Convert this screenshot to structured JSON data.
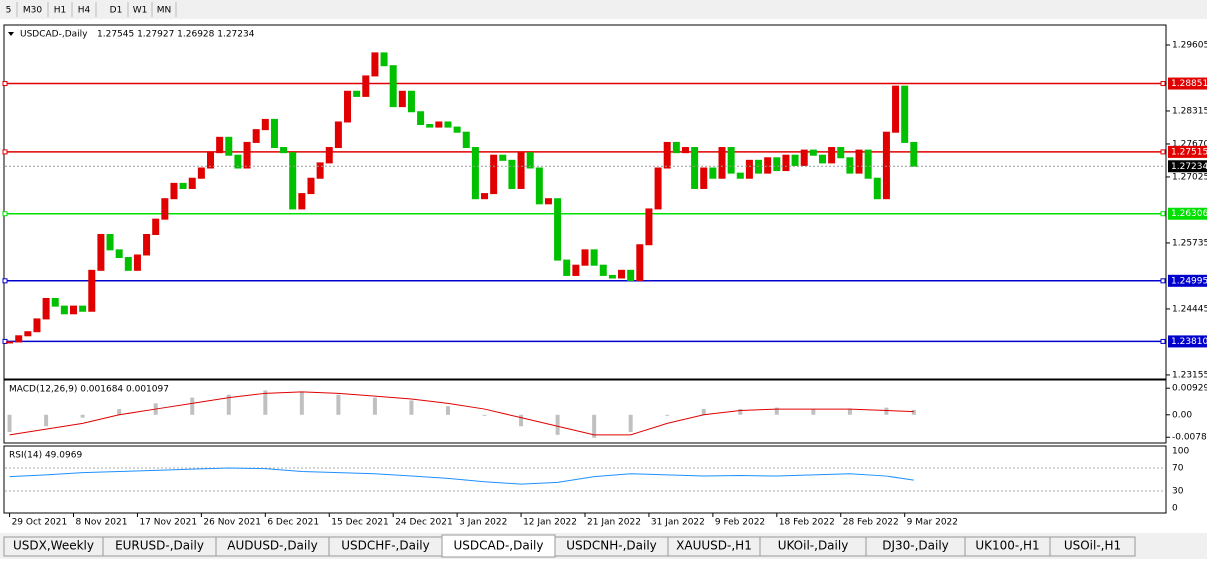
{
  "toolbar": {
    "timeframes": [
      "5",
      "M30",
      "H1",
      "H4",
      "D1",
      "W1",
      "MN"
    ]
  },
  "chart_data": {
    "type": "candlestick",
    "header": "USDCAD-,Daily",
    "quote": "1.27545 1.27927 1.26928 1.27234",
    "closes": [
      1.238,
      1.2392,
      1.24,
      1.2425,
      1.2465,
      1.245,
      1.2435,
      1.245,
      1.244,
      1.252,
      1.259,
      1.256,
      1.2545,
      1.252,
      1.255,
      1.259,
      1.262,
      1.266,
      1.269,
      1.268,
      1.27,
      1.272,
      1.275,
      1.278,
      1.2745,
      1.272,
      1.277,
      1.2795,
      1.2815,
      1.276,
      1.275,
      1.264,
      1.267,
      1.27,
      1.273,
      1.276,
      1.281,
      1.287,
      1.286,
      1.29,
      1.2945,
      1.292,
      1.284,
      1.287,
      1.283,
      1.2805,
      1.28,
      1.281,
      1.28,
      1.279,
      1.276,
      1.266,
      1.267,
      1.2745,
      1.2735,
      1.268,
      1.275,
      1.272,
      1.265,
      1.266,
      1.254,
      1.251,
      1.253,
      1.256,
      1.253,
      1.251,
      1.2505,
      1.252,
      1.25,
      1.257,
      1.264,
      1.272,
      1.277,
      1.275,
      1.276,
      1.268,
      1.272,
      1.27,
      1.276,
      1.271,
      1.27,
      1.2735,
      1.271,
      1.274,
      1.2715,
      1.2745,
      1.2725,
      1.2755,
      1.2745,
      1.273,
      1.276,
      1.274,
      1.271,
      1.2755,
      1.27,
      1.266,
      1.279,
      1.288,
      1.277,
      1.27234
    ],
    "up_color": "#e00000",
    "down_color": "#00c000",
    "xlim": [
      -0.5,
      126.5
    ],
    "xticks": [
      {
        "value": 0,
        "label": "29 Oct 2021"
      },
      {
        "value": 7,
        "label": "8 Nov 2021"
      },
      {
        "value": 14,
        "label": "17 Nov 2021"
      },
      {
        "value": 21,
        "label": "26 Nov 2021"
      },
      {
        "value": 28,
        "label": "6 Dec 2021"
      },
      {
        "value": 35,
        "label": "15 Dec 2021"
      },
      {
        "value": 42,
        "label": "24 Dec 2021"
      },
      {
        "value": 49,
        "label": "3 Jan 2022"
      },
      {
        "value": 56,
        "label": "12 Jan 2022"
      },
      {
        "value": 63,
        "label": "21 Jan 2022"
      },
      {
        "value": 70,
        "label": "31 Jan 2022"
      },
      {
        "value": 77,
        "label": "9 Feb 2022"
      },
      {
        "value": 84,
        "label": "18 Feb 2022"
      },
      {
        "value": 91,
        "label": "28 Feb 2022"
      },
      {
        "value": 98,
        "label": "9 Mar 2022"
      }
    ],
    "ylim": [
      1.23095,
      1.29976
    ],
    "yticks": [
      1.29605,
      1.28315,
      {
        "value": 1.2767,
        "label": "1.27670"
      },
      1.27025,
      1.25735,
      1.24445,
      1.23155
    ],
    "hlines": [
      {
        "value": 1.28851,
        "color": "#e00000"
      },
      {
        "value": 1.27515,
        "color": "#e00000"
      },
      {
        "value": 1.26306,
        "color": "#00e000"
      },
      {
        "value": 1.24995,
        "color": "#0000cc"
      },
      {
        "value": {
          "value": 1.2381,
          "label": "1.23810"
        },
        "color": "#0000cc"
      }
    ],
    "last_price": 1.27234,
    "macd": {
      "label": "MACD(12,26,9) 0.001684 0.001097",
      "x": [
        0,
        4,
        8,
        12,
        16,
        20,
        24,
        28,
        32,
        36,
        40,
        44,
        48,
        52,
        56,
        60,
        64,
        68,
        72,
        76,
        80,
        84,
        88,
        92,
        96,
        99
      ],
      "histogram": [
        -0.006,
        -0.004,
        -0.001,
        0.002,
        0.004,
        0.006,
        0.007,
        0.0085,
        0.008,
        0.007,
        0.006,
        0.005,
        0.003,
        0.0,
        -0.004,
        -0.007,
        -0.008,
        -0.006,
        0.0,
        0.002,
        0.002,
        0.0025,
        0.002,
        0.0022,
        0.0025,
        0.0017
      ],
      "signal": [
        -0.007,
        -0.005,
        -0.003,
        0.0,
        0.002,
        0.004,
        0.006,
        0.0075,
        0.008,
        0.0075,
        0.0065,
        0.0055,
        0.004,
        0.002,
        -0.001,
        -0.004,
        -0.007,
        -0.007,
        -0.003,
        0.0,
        0.0015,
        0.002,
        0.002,
        0.002,
        0.0015,
        0.0011
      ],
      "ylim": [
        -0.0095,
        0.0118
      ],
      "yticks": [
        0.009293,
        {
          "value": 0,
          "label": "0.00"
        },
        -0.00784
      ]
    },
    "rsi": {
      "label": "RSI(14) 49.0969",
      "x": [
        0,
        4,
        8,
        12,
        16,
        20,
        24,
        28,
        32,
        36,
        40,
        44,
        48,
        52,
        56,
        60,
        64,
        68,
        72,
        76,
        80,
        84,
        88,
        92,
        96,
        99
      ],
      "values": [
        55,
        58,
        62,
        64,
        66,
        68,
        70,
        69,
        64,
        62,
        60,
        56,
        52,
        46,
        42,
        45,
        55,
        60,
        58,
        56,
        57,
        56,
        58,
        60,
        56,
        49
      ],
      "ylim": [
        -6.7,
        106.7
      ],
      "yticks": [
        100,
        70,
        30,
        0
      ]
    }
  },
  "tabs": [
    "USDX,Weekly",
    "EURUSD-,Daily",
    "AUDUSD-,Daily",
    "USDCHF-,Daily",
    "USDCAD-,Daily",
    "USDCNH-,Daily",
    "XAUUSD-,H1",
    "UKOil-,Daily",
    "DJ30-,Daily",
    "UK100-,H1",
    "USOil-,H1"
  ],
  "active_tab": "USDCAD-,Daily"
}
